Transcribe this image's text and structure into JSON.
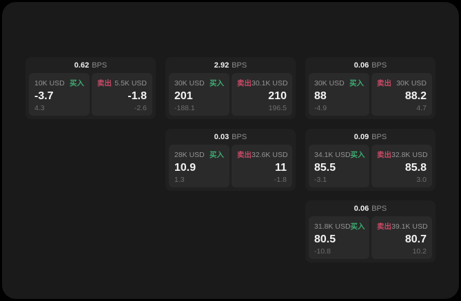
{
  "labels": {
    "bps": "BPS",
    "buy": "买入",
    "sell": "卖出"
  },
  "colors": {
    "page_bg": "#000000",
    "window_bg": "#1a1a1a",
    "card_bg": "#202020",
    "panel_bg": "#2a2a2a",
    "buy_green": "#3daa70",
    "sell_red": "#c94a66",
    "text_primary": "#f4f4f4",
    "text_muted": "#949494",
    "text_dim": "#6f6f6f"
  },
  "cards": [
    {
      "bps": "0.62",
      "row": 1,
      "col": 1,
      "buy": {
        "amount": "10K USD",
        "value": "-3.7",
        "delta": "4.3"
      },
      "sell": {
        "amount": "5.5K USD",
        "value": "-1.8",
        "delta": "-2.6"
      }
    },
    {
      "bps": "2.92",
      "row": 1,
      "col": 2,
      "buy": {
        "amount": "30K USD",
        "value": "201",
        "delta": "-188.1"
      },
      "sell": {
        "amount": "30.1K USD",
        "value": "210",
        "delta": "196.5"
      }
    },
    {
      "bps": "0.06",
      "row": 1,
      "col": 3,
      "buy": {
        "amount": "30K USD",
        "value": "88",
        "delta": "-4.9"
      },
      "sell": {
        "amount": "30K USD",
        "value": "88.2",
        "delta": "4.7"
      }
    },
    {
      "bps": "0.03",
      "row": 2,
      "col": 2,
      "buy": {
        "amount": "28K USD",
        "value": "10.9",
        "delta": "1.3"
      },
      "sell": {
        "amount": "32.6K USD",
        "value": "11",
        "delta": "-1.8"
      }
    },
    {
      "bps": "0.09",
      "row": 2,
      "col": 3,
      "buy": {
        "amount": "34.1K USD",
        "value": "85.5",
        "delta": "-3.1"
      },
      "sell": {
        "amount": "32.8K USD",
        "value": "85.8",
        "delta": "3.0"
      }
    },
    {
      "bps": "0.06",
      "row": 3,
      "col": 3,
      "buy": {
        "amount": "31.8K USD",
        "value": "80.5",
        "delta": "-10.8"
      },
      "sell": {
        "amount": "39.1K USD",
        "value": "80.7",
        "delta": "10.2"
      }
    }
  ]
}
